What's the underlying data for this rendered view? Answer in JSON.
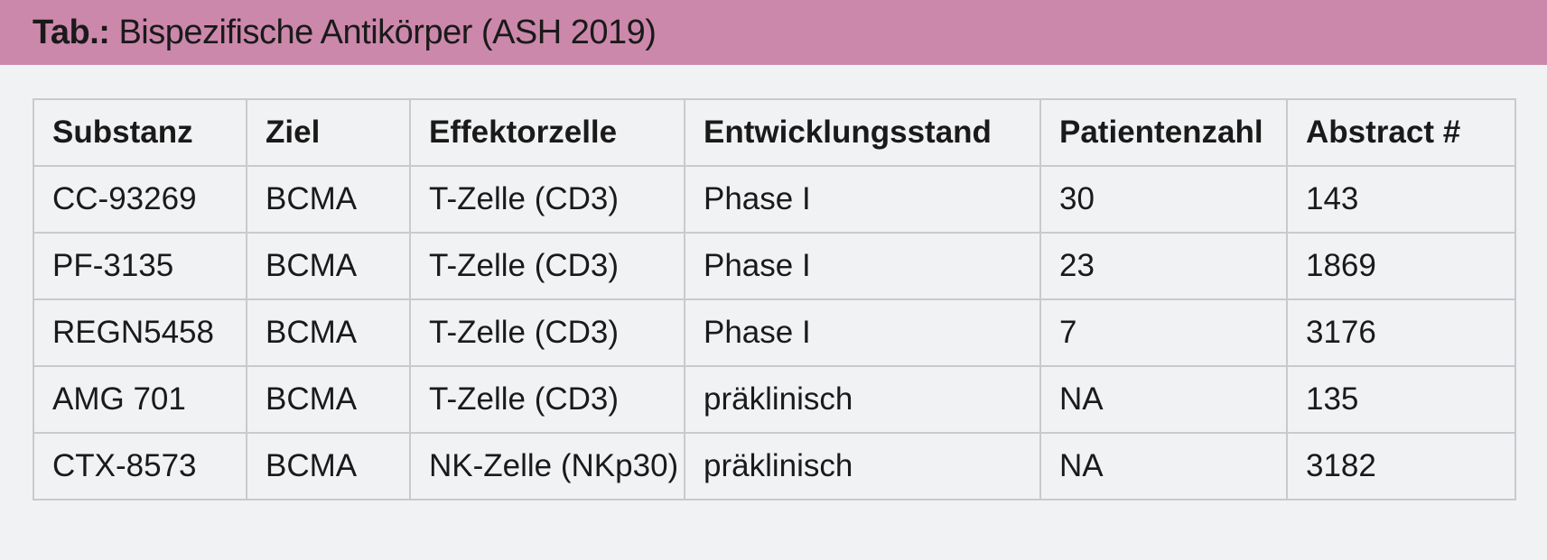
{
  "title": {
    "prefix": "Tab.:",
    "text": "Bispezifische Antikörper (ASH 2019)"
  },
  "colors": {
    "title_bar": "#cc88ab",
    "background": "#f1f2f4",
    "grid": "#c9cacd"
  },
  "table": {
    "headers": [
      "Substanz",
      "Ziel",
      "Effektorzelle",
      "Entwicklungsstand",
      "Patientenzahl",
      "Abstract #"
    ],
    "rows": [
      [
        "CC-93269",
        "BCMA",
        "T-Zelle (CD3)",
        "Phase I",
        "30",
        "143"
      ],
      [
        "PF-3135",
        "BCMA",
        "T-Zelle (CD3)",
        "Phase I",
        "23",
        "1869"
      ],
      [
        "REGN5458",
        "BCMA",
        "T-Zelle (CD3)",
        "Phase I",
        "7",
        "3176"
      ],
      [
        "AMG 701",
        "BCMA",
        "T-Zelle (CD3)",
        "präklinisch",
        "NA",
        "135"
      ],
      [
        "CTX-8573",
        "BCMA",
        "NK-Zelle (NKp30)",
        "präklinisch",
        "NA",
        "3182"
      ]
    ]
  }
}
